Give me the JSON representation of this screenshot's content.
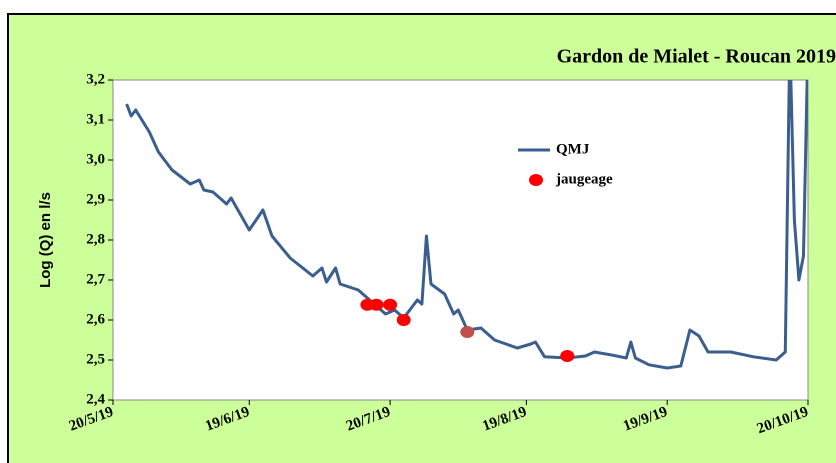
{
  "chart_data": {
    "type": "line",
    "title": "Gardon de Mialet - Roucan 2019",
    "y_label": "Log (Q) en l/s",
    "xlim": [
      "2019-05-20",
      "2019-10-20"
    ],
    "xticks": [
      {
        "value": "2019-05-20",
        "label": "20/5/19"
      },
      {
        "value": "2019-06-19",
        "label": "19/6/19"
      },
      {
        "value": "2019-07-20",
        "label": "20/7/19"
      },
      {
        "value": "2019-08-19",
        "label": "19/8/19"
      },
      {
        "value": "2019-09-19",
        "label": "19/9/19"
      },
      {
        "value": "2019-10-20",
        "label": "20/10/19"
      }
    ],
    "ylim": [
      2.4,
      3.2
    ],
    "yticks": [
      {
        "value": 2.4,
        "label": "2,4"
      },
      {
        "value": 2.5,
        "label": "2,5"
      },
      {
        "value": 2.6,
        "label": "2,6"
      },
      {
        "value": 2.7,
        "label": "2,7"
      },
      {
        "value": 2.8,
        "label": "2,8"
      },
      {
        "value": 2.9,
        "label": "2,9"
      },
      {
        "value": 3.0,
        "label": "3,0"
      },
      {
        "value": 3.1,
        "label": "3,1"
      },
      {
        "value": 3.2,
        "label": "3,2"
      }
    ],
    "series": [
      {
        "name": "QMJ",
        "color": "#3a5f8f",
        "x": [
          "2019-05-23",
          "2019-05-24",
          "2019-05-25",
          "2019-05-28",
          "2019-05-30",
          "2019-06-02",
          "2019-06-06",
          "2019-06-08",
          "2019-06-09",
          "2019-06-11",
          "2019-06-14",
          "2019-06-15",
          "2019-06-19",
          "2019-06-22",
          "2019-06-24",
          "2019-06-28",
          "2019-07-03",
          "2019-07-05",
          "2019-07-06",
          "2019-07-08",
          "2019-07-09",
          "2019-07-13",
          "2019-07-16",
          "2019-07-19",
          "2019-07-21",
          "2019-07-23",
          "2019-07-26",
          "2019-07-27",
          "2019-07-28",
          "2019-07-29",
          "2019-08-01",
          "2019-08-03",
          "2019-08-04",
          "2019-08-06",
          "2019-08-09",
          "2019-08-12",
          "2019-08-17",
          "2019-08-20",
          "2019-08-21",
          "2019-08-23",
          "2019-08-28",
          "2019-09-01",
          "2019-09-03",
          "2019-09-07",
          "2019-09-10",
          "2019-09-11",
          "2019-09-12",
          "2019-09-15",
          "2019-09-19",
          "2019-09-22",
          "2019-09-24",
          "2019-09-26",
          "2019-09-28",
          "2019-10-03",
          "2019-10-08",
          "2019-10-13",
          "2019-10-15",
          "2019-10-16",
          "2019-10-17",
          "2019-10-18",
          "2019-10-19",
          "2019-10-20"
        ],
        "values": [
          3.14,
          3.11,
          3.125,
          3.07,
          3.02,
          2.975,
          2.94,
          2.95,
          2.925,
          2.92,
          2.89,
          2.905,
          2.825,
          2.875,
          2.81,
          2.755,
          2.71,
          2.73,
          2.695,
          2.73,
          2.69,
          2.675,
          2.645,
          2.615,
          2.625,
          2.605,
          2.65,
          2.64,
          2.81,
          2.69,
          2.665,
          2.615,
          2.625,
          2.575,
          2.58,
          2.55,
          2.53,
          2.54,
          2.545,
          2.508,
          2.505,
          2.51,
          2.52,
          2.512,
          2.505,
          2.545,
          2.505,
          2.488,
          2.48,
          2.485,
          2.575,
          2.56,
          2.52,
          2.52,
          2.508,
          2.5,
          2.52,
          3.3,
          2.85,
          2.7,
          2.76,
          3.3
        ]
      },
      {
        "name": "jaugeage",
        "type": "scatter",
        "color": "#ff0000",
        "x": [
          "2019-07-15",
          "2019-07-17",
          "2019-07-20",
          "2019-07-23",
          "2019-08-06",
          "2019-08-28"
        ],
        "values": [
          2.638,
          2.638,
          2.638,
          2.6,
          2.57,
          2.51
        ],
        "colors": [
          "#ff0000",
          "#ff0000",
          "#ff0000",
          "#ff0000",
          "#c0504d",
          "#ff0000"
        ]
      }
    ]
  }
}
